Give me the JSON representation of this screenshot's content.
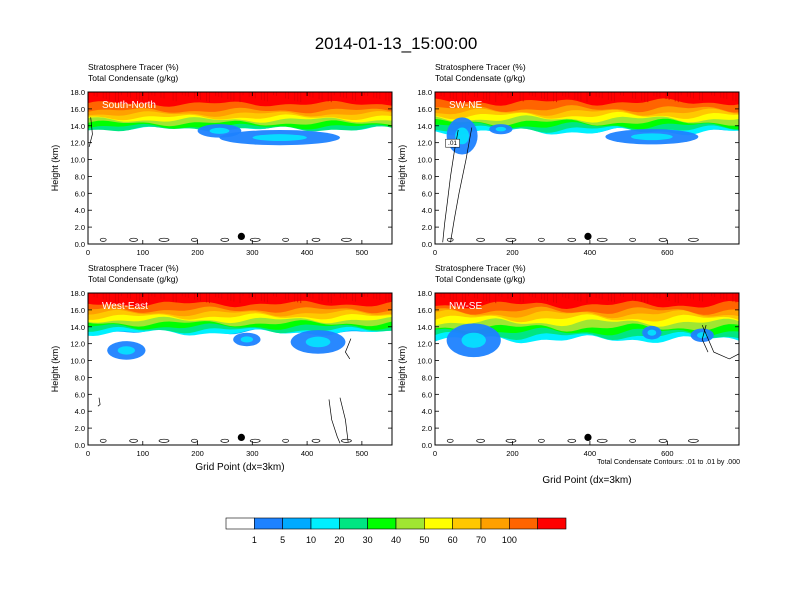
{
  "title": "2014-01-13_15:00:00",
  "footnote": "Total Condensate Contours: .01 to .01 by .000",
  "colorbar": {
    "labels": [
      "1",
      "5",
      "10",
      "20",
      "30",
      "40",
      "50",
      "60",
      "70",
      "100"
    ],
    "colors": [
      "#ffffff",
      "#1e82ff",
      "#00aaff",
      "#00f0ff",
      "#00e682",
      "#00ff00",
      "#a0e632",
      "#ffff00",
      "#ffc800",
      "#ffa000",
      "#ff6400",
      "#ff0000"
    ]
  },
  "chart_data": [
    {
      "type": "contour",
      "panel": "South-North",
      "title_line1": "Stratosphere Tracer   (%)",
      "title_line2": "Total Condensate   (g/kg)",
      "ylabel": "Height (km)",
      "xlabel": "",
      "xlim": [
        0,
        555
      ],
      "ylim": [
        0,
        18
      ],
      "xticks": [
        "0",
        "100",
        "200",
        "300",
        "400",
        "500"
      ],
      "yticks": [
        "0.0",
        "2.0",
        "4.0",
        "6.0",
        "8.0",
        "10.0",
        "12.0",
        "14.0",
        "16.0",
        "18.0"
      ],
      "marker_x": 280,
      "marker_y": 0.9,
      "contour_label": ""
    },
    {
      "type": "contour",
      "panel": "SW-NE",
      "title_line1": "Stratosphere Tracer   (%)",
      "title_line2": "Total Condensate   (g/kg)",
      "ylabel": "Height (km)",
      "xlabel": "",
      "xlim": [
        0,
        785
      ],
      "ylim": [
        0,
        18
      ],
      "xticks": [
        "0",
        "200",
        "400",
        "600"
      ],
      "yticks": [
        "0.0",
        "2.0",
        "4.0",
        "6.0",
        "8.0",
        "10.0",
        "12.0",
        "14.0",
        "16.0",
        "18.0"
      ],
      "marker_x": 395,
      "marker_y": 0.9,
      "contour_label": ".01"
    },
    {
      "type": "contour",
      "panel": "West-East",
      "title_line1": "Stratosphere Tracer   (%)",
      "title_line2": "Total Condensate   (g/kg)",
      "ylabel": "Height (km)",
      "xlabel": "Grid Point (dx=3km)",
      "xlim": [
        0,
        555
      ],
      "ylim": [
        0,
        18
      ],
      "xticks": [
        "0",
        "100",
        "200",
        "300",
        "400",
        "500"
      ],
      "yticks": [
        "0.0",
        "2.0",
        "4.0",
        "6.0",
        "8.0",
        "10.0",
        "12.0",
        "14.0",
        "16.0",
        "18.0"
      ],
      "marker_x": 280,
      "marker_y": 0.9,
      "contour_label": ""
    },
    {
      "type": "contour",
      "panel": "NW-SE",
      "title_line1": "Stratosphere Tracer   (%)",
      "title_line2": "Total Condensate   (g/kg)",
      "ylabel": "Height (km)",
      "xlabel": "Grid Point (dx=3km)",
      "xlim": [
        0,
        785
      ],
      "ylim": [
        0,
        18
      ],
      "xticks": [
        "0",
        "200",
        "400",
        "600"
      ],
      "yticks": [
        "0.0",
        "2.0",
        "4.0",
        "6.0",
        "8.0",
        "10.0",
        "12.0",
        "14.0",
        "16.0",
        "18.0"
      ],
      "marker_x": 395,
      "marker_y": 0.9,
      "contour_label": ""
    }
  ]
}
